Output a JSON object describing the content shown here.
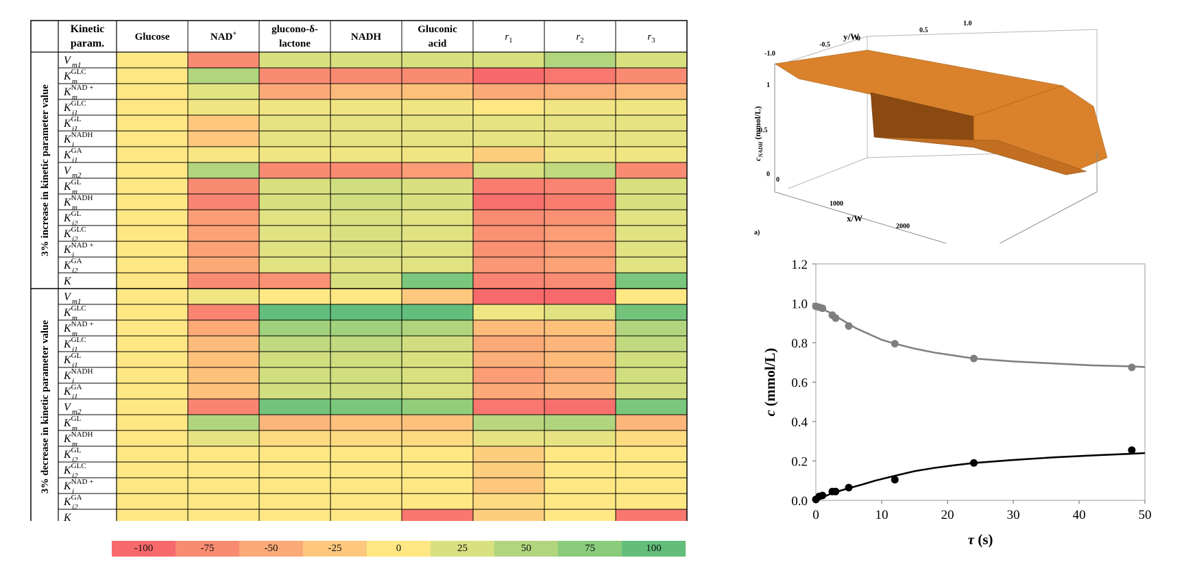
{
  "heatmap": {
    "corner": "",
    "param_header": [
      "Kinetic",
      "param."
    ],
    "columns": [
      {
        "label": "Glucose"
      },
      {
        "label": "NAD",
        "sup": "+"
      },
      {
        "label": "glucono-δ-",
        "label2": "lactone"
      },
      {
        "label": "NADH"
      },
      {
        "label": "Gluconic",
        "label2": "acid"
      },
      {
        "label": "r",
        "sub": "1",
        "italic": true
      },
      {
        "label": "r",
        "sub": "2",
        "italic": true
      },
      {
        "label": "r",
        "sub": "3",
        "italic": true
      }
    ],
    "groups": [
      {
        "label": "3% increase in kinetic parameter value",
        "rows": [
          {
            "sym": "V",
            "sub": "m1",
            "sup": "",
            "values": [
              0,
              -75,
              25,
              25,
              25,
              25,
              50,
              25
            ]
          },
          {
            "sym": "K",
            "sub": "m",
            "sup": "GLC",
            "values": [
              0,
              50,
              -75,
              -75,
              -75,
              -100,
              -90,
              -75
            ]
          },
          {
            "sym": "K",
            "sub": "m",
            "sup": "NAD +",
            "values": [
              0,
              20,
              -50,
              -35,
              -30,
              -50,
              -45,
              -35
            ]
          },
          {
            "sym": "K",
            "sub": "i1",
            "sup": "GLC",
            "values": [
              0,
              10,
              10,
              10,
              10,
              0,
              10,
              10
            ]
          },
          {
            "sym": "K",
            "sub": "i1",
            "sup": "GL",
            "values": [
              0,
              -25,
              15,
              15,
              15,
              15,
              15,
              15
            ]
          },
          {
            "sym": "K",
            "sub": "i",
            "sup": "NADH",
            "values": [
              0,
              -25,
              15,
              15,
              15,
              15,
              15,
              15
            ]
          },
          {
            "sym": "K",
            "sub": "i1",
            "sup": "GA",
            "values": [
              0,
              5,
              10,
              10,
              10,
              -20,
              10,
              10
            ]
          },
          {
            "sym": "V",
            "sub": "m2",
            "sup": "",
            "values": [
              0,
              50,
              -75,
              -75,
              -60,
              25,
              40,
              -75
            ]
          },
          {
            "sym": "K",
            "sub": "m",
            "sup": "GL",
            "values": [
              0,
              -75,
              25,
              30,
              25,
              -85,
              -80,
              25
            ]
          },
          {
            "sym": "K",
            "sub": "m",
            "sup": "NADH",
            "values": [
              0,
              -80,
              25,
              30,
              25,
              -95,
              -85,
              25
            ]
          },
          {
            "sym": "K",
            "sub": "i2",
            "sup": "GL",
            "values": [
              0,
              -60,
              20,
              25,
              20,
              -75,
              -70,
              20
            ]
          },
          {
            "sym": "K",
            "sub": "i2",
            "sup": "GLC",
            "values": [
              0,
              -55,
              20,
              25,
              20,
              -70,
              -60,
              20
            ]
          },
          {
            "sym": "K",
            "sub": "i",
            "sup": "NAD +",
            "values": [
              0,
              -55,
              20,
              25,
              20,
              -70,
              -60,
              20
            ]
          },
          {
            "sym": "K",
            "sub": "i2",
            "sup": "GA",
            "values": [
              0,
              -50,
              20,
              20,
              20,
              -65,
              -55,
              20
            ]
          },
          {
            "sym": "K",
            "sub": "",
            "sup": "",
            "values": [
              0,
              -75,
              -70,
              25,
              85,
              -80,
              -75,
              85
            ]
          }
        ]
      },
      {
        "label": "3% decrease in kinetic parameter value",
        "rows": [
          {
            "sym": "V",
            "sub": "m1",
            "sup": "",
            "values": [
              0,
              10,
              0,
              0,
              -25,
              -100,
              -100,
              0
            ]
          },
          {
            "sym": "K",
            "sub": "m",
            "sup": "GLC",
            "values": [
              0,
              -80,
              100,
              100,
              100,
              10,
              20,
              90
            ]
          },
          {
            "sym": "K",
            "sub": "m",
            "sup": "NAD +",
            "values": [
              0,
              -50,
              60,
              60,
              50,
              -35,
              -30,
              50
            ]
          },
          {
            "sym": "K",
            "sub": "i1",
            "sup": "GLC",
            "values": [
              0,
              -35,
              40,
              40,
              30,
              -50,
              -40,
              40
            ]
          },
          {
            "sym": "K",
            "sub": "i1",
            "sup": "GL",
            "values": [
              0,
              -30,
              30,
              30,
              25,
              -45,
              -35,
              30
            ]
          },
          {
            "sym": "K",
            "sub": "i",
            "sup": "NADH",
            "values": [
              0,
              -30,
              30,
              30,
              25,
              -60,
              -45,
              30
            ]
          },
          {
            "sym": "K",
            "sub": "i1",
            "sup": "GA",
            "values": [
              0,
              -30,
              30,
              30,
              25,
              -50,
              -40,
              30
            ]
          },
          {
            "sym": "V",
            "sub": "m2",
            "sup": "",
            "values": [
              0,
              -80,
              90,
              85,
              70,
              -90,
              -95,
              85
            ]
          },
          {
            "sym": "K",
            "sub": "m",
            "sup": "GL",
            "values": [
              0,
              50,
              -40,
              -30,
              -30,
              45,
              50,
              -40
            ]
          },
          {
            "sym": "K",
            "sub": "m",
            "sup": "NADH",
            "values": [
              0,
              15,
              -10,
              -10,
              -10,
              15,
              15,
              -10
            ]
          },
          {
            "sym": "K",
            "sub": "i2",
            "sup": "GL",
            "values": [
              0,
              0,
              0,
              0,
              0,
              -20,
              0,
              0
            ]
          },
          {
            "sym": "K",
            "sub": "i2",
            "sup": "GLC",
            "values": [
              0,
              0,
              0,
              0,
              0,
              -20,
              0,
              0
            ]
          },
          {
            "sym": "K",
            "sub": "i",
            "sup": "NAD +",
            "values": [
              0,
              0,
              0,
              0,
              0,
              -25,
              0,
              0
            ]
          },
          {
            "sym": "K",
            "sub": "i2",
            "sup": "GA",
            "values": [
              0,
              0,
              0,
              0,
              0,
              -10,
              0,
              0
            ]
          },
          {
            "sym": "K",
            "sub": "",
            "sup": "",
            "values": [
              0,
              0,
              0,
              0,
              -90,
              -20,
              0,
              -90
            ]
          }
        ]
      }
    ]
  },
  "legend": [
    {
      "label": "-100",
      "color": "#f8696b"
    },
    {
      "label": "-75",
      "color": "#f98b72"
    },
    {
      "label": "-50",
      "color": "#fca978"
    },
    {
      "label": "-25",
      "color": "#fdc77d"
    },
    {
      "label": "0",
      "color": "#ffe884"
    },
    {
      "label": "25",
      "color": "#d9e080"
    },
    {
      "label": "50",
      "color": "#b1d57e"
    },
    {
      "label": "75",
      "color": "#8acb7c"
    },
    {
      "label": "100",
      "color": "#63be7b"
    }
  ],
  "surface_plot": {
    "panel_label": "a)",
    "y_label": "y/W",
    "x_label": "x/W",
    "z_label": "c",
    "z_label_sub": "NADH",
    "z_label_unit": " (mmol/L)",
    "y_ticks": [
      "-1.0",
      "-0.5",
      "0",
      "0.5",
      "1.0"
    ],
    "x_ticks": [
      "0",
      "1000",
      "2000"
    ],
    "z_ticks": [
      "0",
      "0.5",
      "1"
    ],
    "surface_color": "#d9822b"
  },
  "chart_data": {
    "type": "scatter",
    "xlabel": "τ (s)",
    "ylabel": "c (mmol/L)",
    "xlim": [
      0,
      50
    ],
    "ylim": [
      0,
      1.2
    ],
    "x_ticks": [
      0,
      10,
      20,
      30,
      40,
      50
    ],
    "y_ticks": [
      0.0,
      0.2,
      0.4,
      0.6,
      0.8,
      1.0,
      1.2
    ],
    "grid": false,
    "series": [
      {
        "color": "#7f7f7f",
        "points": [
          [
            0,
            0.985
          ],
          [
            0.5,
            0.98
          ],
          [
            1,
            0.975
          ],
          [
            2.5,
            0.94
          ],
          [
            3,
            0.925
          ],
          [
            5,
            0.885
          ],
          [
            12,
            0.795
          ],
          [
            24,
            0.72
          ],
          [
            48,
            0.675
          ]
        ],
        "fit": [
          [
            0,
            0.985
          ],
          [
            2,
            0.955
          ],
          [
            4,
            0.915
          ],
          [
            6,
            0.875
          ],
          [
            8,
            0.845
          ],
          [
            10,
            0.815
          ],
          [
            12,
            0.795
          ],
          [
            15,
            0.77
          ],
          [
            18,
            0.75
          ],
          [
            21,
            0.735
          ],
          [
            24,
            0.72
          ],
          [
            30,
            0.705
          ],
          [
            36,
            0.695
          ],
          [
            42,
            0.685
          ],
          [
            48,
            0.68
          ],
          [
            50,
            0.677
          ]
        ]
      },
      {
        "color": "#000000",
        "points": [
          [
            0,
            0.005
          ],
          [
            0.5,
            0.02
          ],
          [
            1,
            0.025
          ],
          [
            2.5,
            0.045
          ],
          [
            3,
            0.045
          ],
          [
            5,
            0.065
          ],
          [
            12,
            0.105
          ],
          [
            24,
            0.19
          ],
          [
            48,
            0.255
          ]
        ],
        "fit": [
          [
            0,
            0.005
          ],
          [
            1,
            0.015
          ],
          [
            2,
            0.03
          ],
          [
            3,
            0.042
          ],
          [
            5,
            0.062
          ],
          [
            7,
            0.08
          ],
          [
            9,
            0.1
          ],
          [
            12,
            0.125
          ],
          [
            15,
            0.148
          ],
          [
            18,
            0.165
          ],
          [
            21,
            0.178
          ],
          [
            24,
            0.19
          ],
          [
            30,
            0.205
          ],
          [
            36,
            0.218
          ],
          [
            42,
            0.228
          ],
          [
            48,
            0.237
          ],
          [
            50,
            0.24
          ]
        ]
      }
    ]
  }
}
